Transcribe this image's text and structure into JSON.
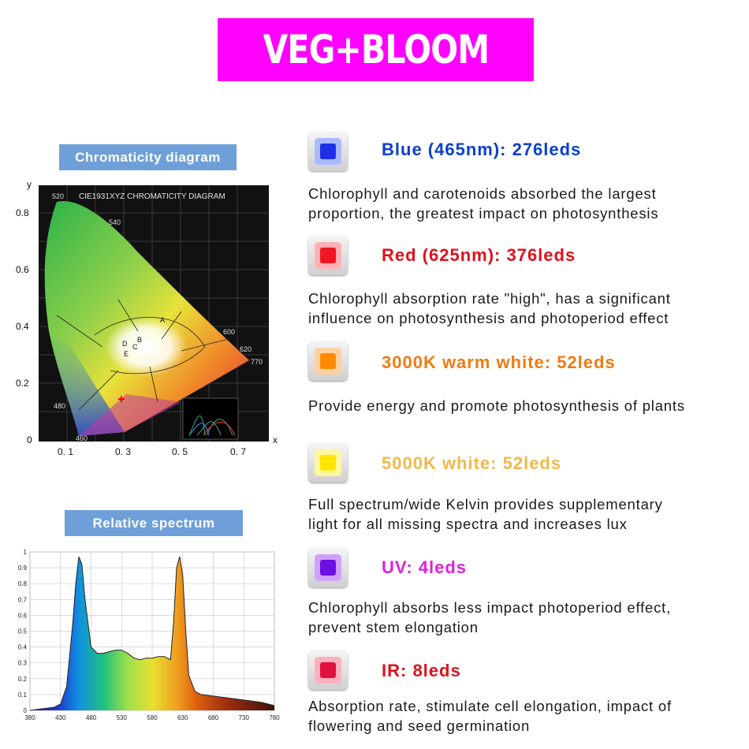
{
  "banner": {
    "text": "VEG+BLOOM",
    "color": "#ff00ff"
  },
  "chromaticity": {
    "label": "Chromaticity diagram",
    "heading": "CIE1931XYZ CHROMATICITY DIAGRAM",
    "axis_y": "y",
    "axis_x": "x",
    "y_ticks": [
      "0.8",
      "0.6",
      "0.4",
      "0.2",
      "0"
    ],
    "x_ticks": [
      "0. 1",
      "0. 3",
      "0. 5",
      "0. 7"
    ]
  },
  "spectrum": {
    "label": "Relative spectrum"
  },
  "chart_data": {
    "type": "area",
    "x": [
      380,
      400,
      420,
      430,
      440,
      450,
      455,
      460,
      465,
      470,
      480,
      490,
      500,
      510,
      520,
      530,
      540,
      550,
      560,
      570,
      580,
      590,
      600,
      610,
      615,
      620,
      625,
      630,
      635,
      640,
      650,
      660,
      680,
      700,
      720,
      740,
      760,
      780
    ],
    "values": [
      0.0,
      0.01,
      0.02,
      0.04,
      0.15,
      0.55,
      0.8,
      0.97,
      0.92,
      0.7,
      0.4,
      0.36,
      0.36,
      0.37,
      0.38,
      0.38,
      0.36,
      0.33,
      0.32,
      0.33,
      0.33,
      0.34,
      0.34,
      0.32,
      0.55,
      0.9,
      0.97,
      0.85,
      0.5,
      0.22,
      0.12,
      0.1,
      0.09,
      0.08,
      0.07,
      0.06,
      0.05,
      0.03
    ],
    "x_ticks": [
      "380",
      "430",
      "480",
      "530",
      "580",
      "630",
      "680",
      "730",
      "780"
    ],
    "y_ticks": [
      "0",
      "0.1",
      "0.2",
      "0.3",
      "0.4",
      "0.5",
      "0.6",
      "0.7",
      "0.8",
      "0.9",
      "1"
    ],
    "xlim": [
      380,
      780
    ],
    "ylim": [
      0,
      1
    ],
    "grid": true
  },
  "leds": [
    {
      "title": "Blue (465nm): 276leds",
      "color": "#0b3fcf",
      "chip": "#1e2fe8",
      "desc": [
        "Chlorophyll and carotenoids absorbed the largest",
        "proportion, the greatest impact on photosynthesis"
      ]
    },
    {
      "title": "Red (625nm): 376leds",
      "color": "#e0101c",
      "chip": "#f01622",
      "desc": [
        "Chlorophyll absorption rate \"high\", has a significant",
        "influence on photosynthesis and photoperiod effect"
      ]
    },
    {
      "title": "3000K warm white: 52leds",
      "color": "#f07a12",
      "chip": "#ff8a00",
      "desc": [
        "Provide energy and promote photosynthesis of plants"
      ]
    },
    {
      "title": "5000K white: 52leds",
      "color": "#f2b84a",
      "chip": "#ffe500",
      "desc": [
        "Full spectrum/wide Kelvin provides supplementary",
        "light for all missing spectra and increases lux"
      ]
    },
    {
      "title": "UV: 4leds",
      "color": "#e020e0",
      "chip": "#6a10e0",
      "desc": [
        "Chlorophyll absorbs less impact photoperiod effect,",
        "prevent stem elongation"
      ]
    },
    {
      "title": "IR: 8leds",
      "color": "#e0101c",
      "chip": "#e01040",
      "desc": [
        "Absorption rate, stimulate cell elongation, impact of",
        "flowering and seed germination"
      ]
    }
  ]
}
